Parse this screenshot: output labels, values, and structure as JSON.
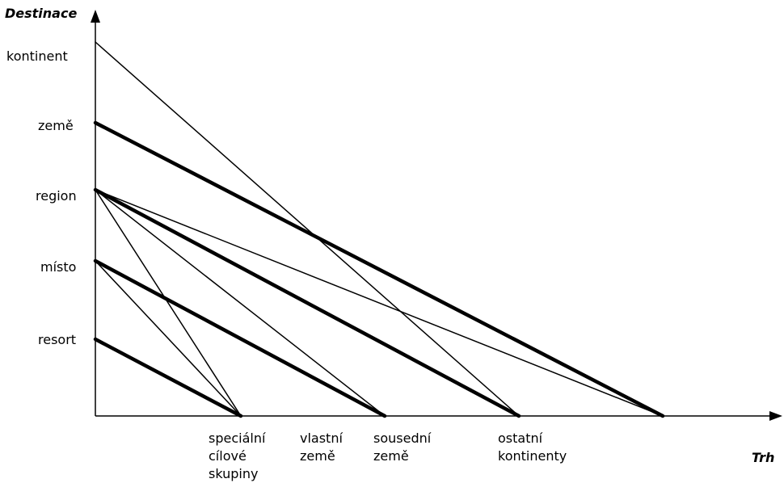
{
  "axes": {
    "y_title": "Destinace",
    "x_title": "Trh"
  },
  "y_levels": [
    {
      "id": "kontinent",
      "label": "kontinent"
    },
    {
      "id": "zeme",
      "label": "země"
    },
    {
      "id": "region",
      "label": "region"
    },
    {
      "id": "misto",
      "label": "místo"
    },
    {
      "id": "resort",
      "label": "resort"
    }
  ],
  "x_levels": [
    {
      "id": "specialni",
      "lines": [
        "speciální",
        "cílové",
        "skupiny"
      ]
    },
    {
      "id": "vlastni",
      "lines": [
        "vlastní",
        "země"
      ]
    },
    {
      "id": "sousedni",
      "lines": [
        "sousední",
        "země"
      ]
    },
    {
      "id": "ostatni",
      "lines": [
        "ostatní",
        "kontinenty"
      ]
    }
  ],
  "links": [
    {
      "from": "kontinent",
      "to": "ostatni",
      "weight": "thin"
    },
    {
      "from": "zeme",
      "to": "end",
      "weight": "thick"
    },
    {
      "from": "region",
      "to": "end",
      "weight": "thin"
    },
    {
      "from": "region",
      "to": "ostatni",
      "weight": "thick"
    },
    {
      "from": "region",
      "to": "sousedni",
      "weight": "thin"
    },
    {
      "from": "region",
      "to": "specialni",
      "weight": "thin"
    },
    {
      "from": "misto",
      "to": "sousedni",
      "weight": "thick"
    },
    {
      "from": "misto",
      "to": "specialni",
      "weight": "thin"
    },
    {
      "from": "resort",
      "to": "specialni",
      "weight": "thick"
    }
  ]
}
